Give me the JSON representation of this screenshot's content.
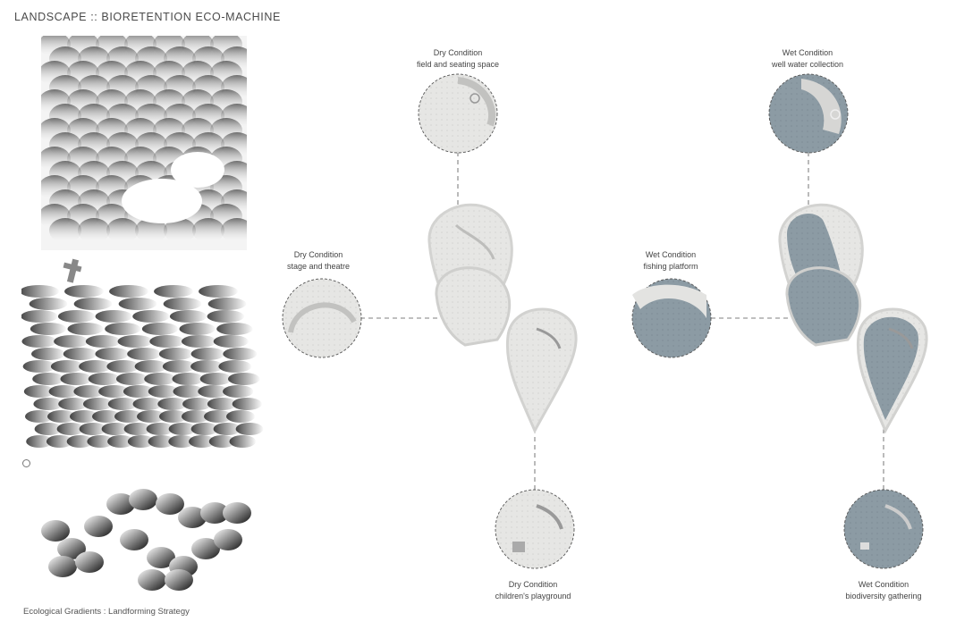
{
  "header": {
    "title": "LANDSCAPE :: BIORETENTION ECO-MACHINE"
  },
  "footer": {
    "caption": "Ecological Gradients : Landforming Strategy"
  },
  "dry": {
    "top": {
      "title": "Dry Condition",
      "subtitle": "field and seating space"
    },
    "left": {
      "title": "Dry Condition",
      "subtitle": "stage and theatre"
    },
    "bottom": {
      "title": "Dry Condition",
      "subtitle": "children's playground"
    }
  },
  "wet": {
    "top": {
      "title": "Wet Condition",
      "subtitle": "well water collection"
    },
    "left": {
      "title": "Wet Condition",
      "subtitle": "fishing platform"
    },
    "bottom": {
      "title": "Wet Condition",
      "subtitle": "biodiversity gathering"
    }
  },
  "colors": {
    "dry_fill": "#e7e7e5",
    "wet_fill": "#8b9aa3",
    "rim": "#d2d2d0",
    "leader": "#555555"
  }
}
